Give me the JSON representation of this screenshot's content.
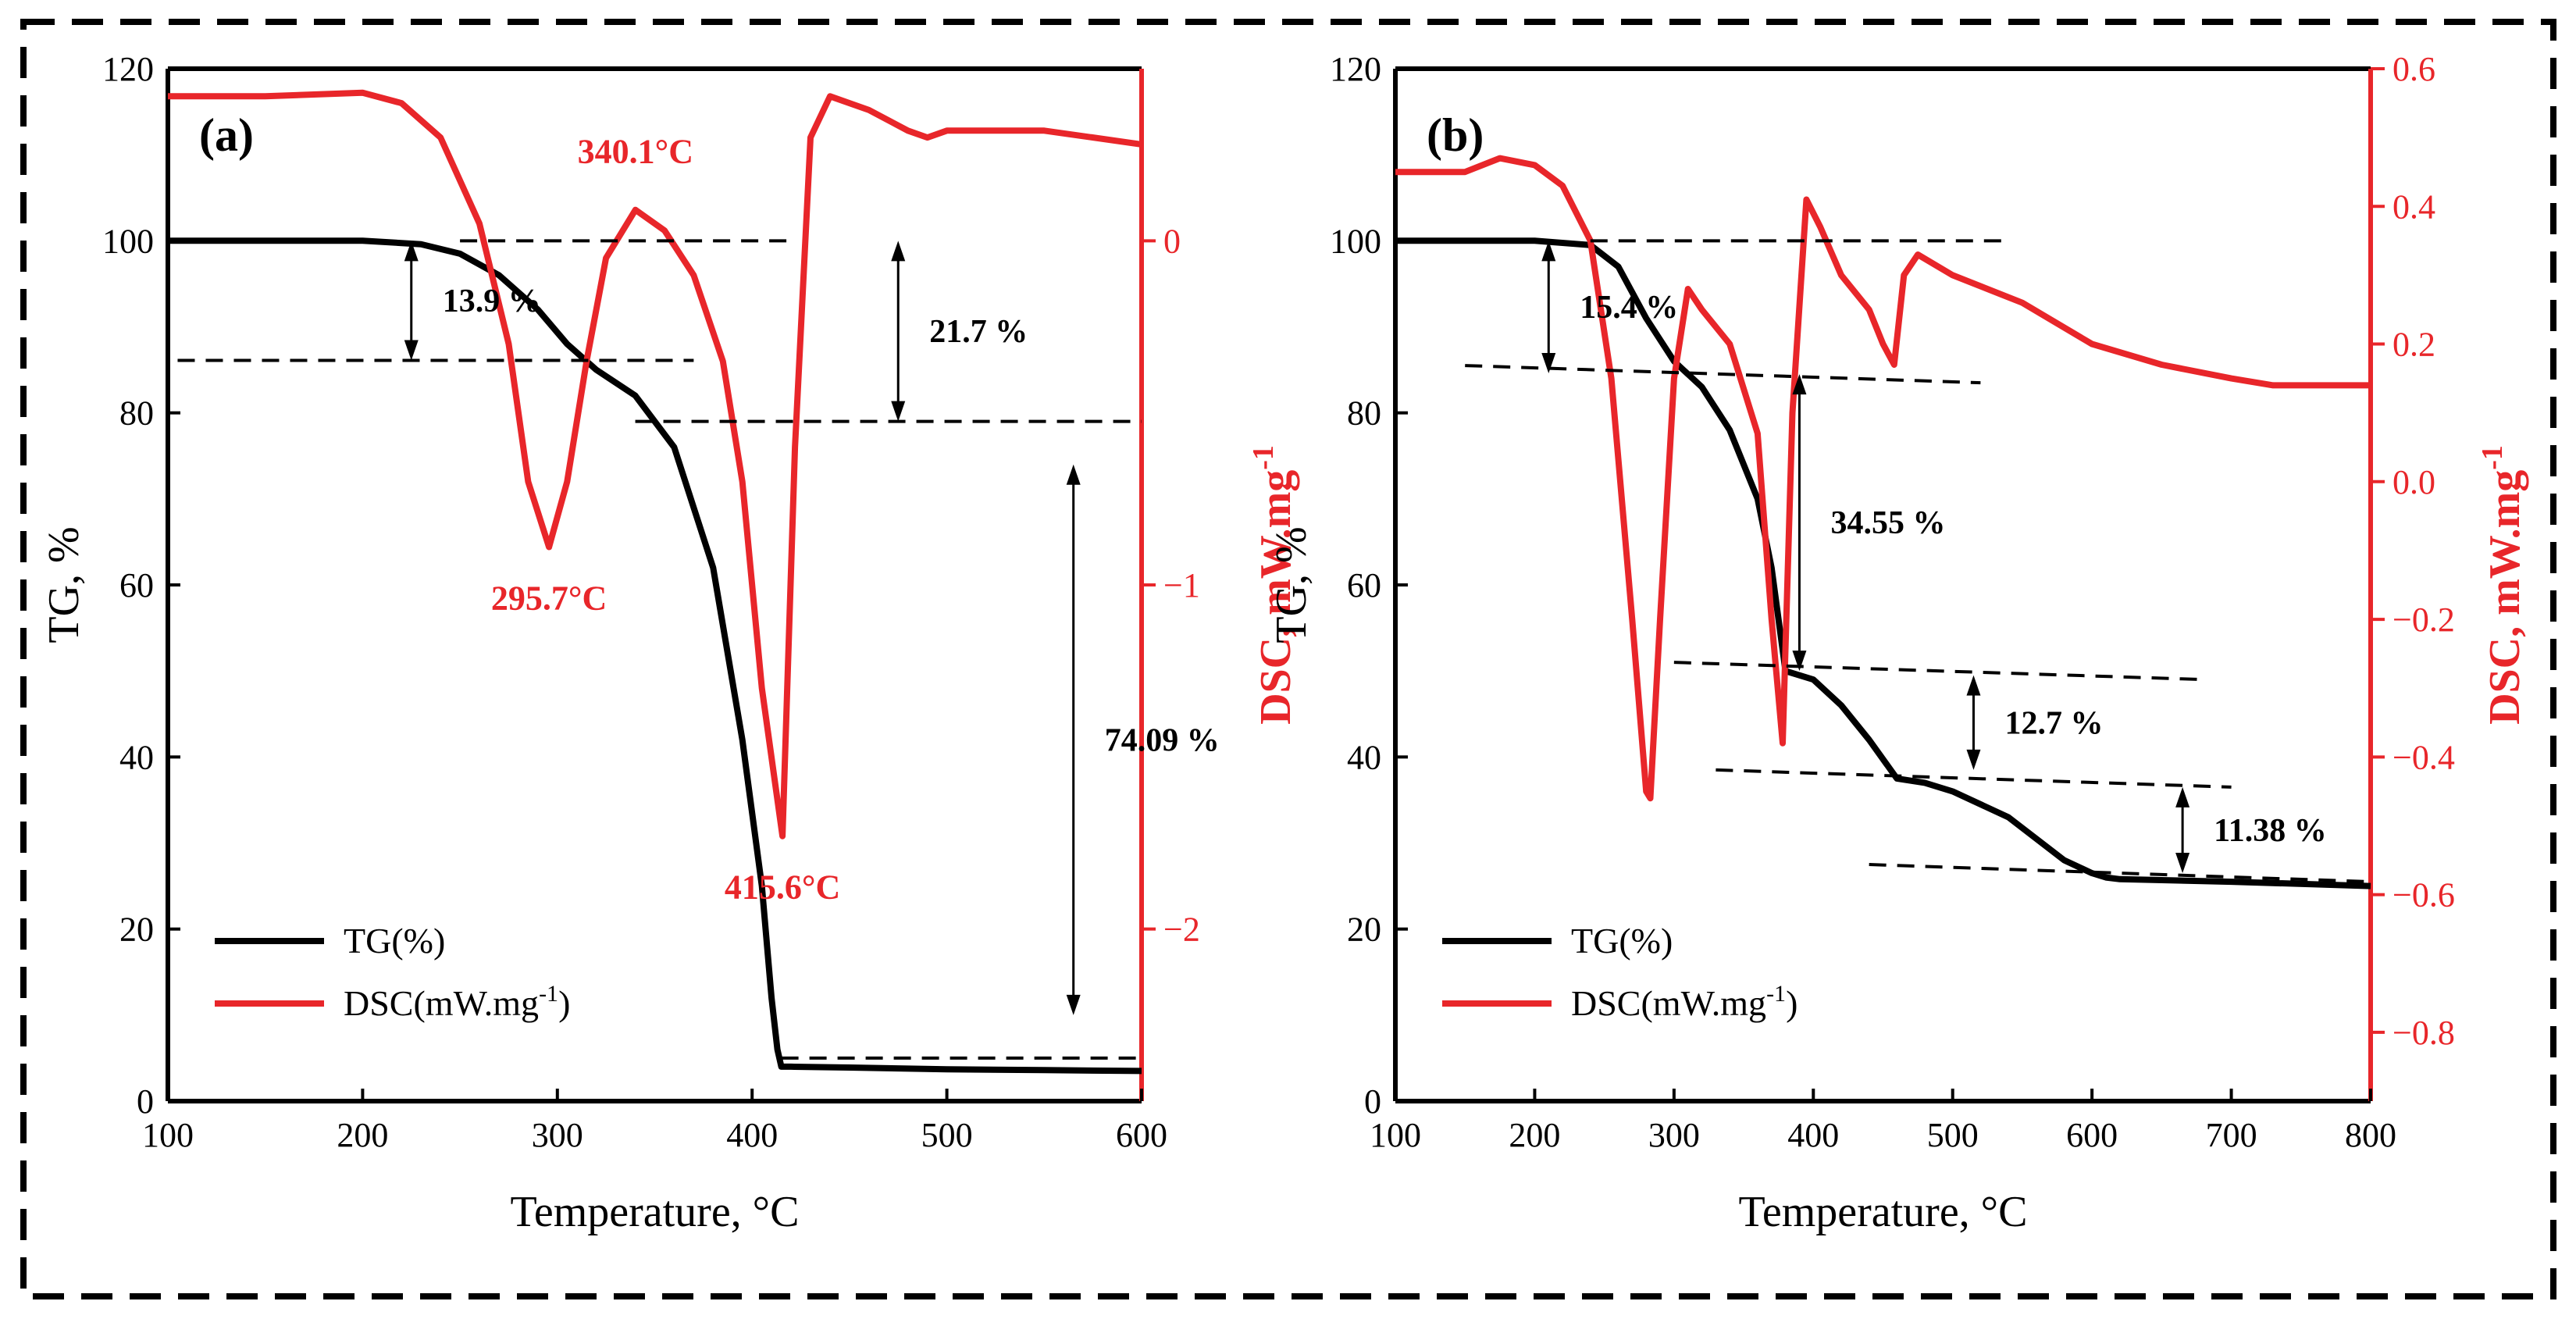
{
  "colors": {
    "tg": "#000000",
    "dsc": "#e8262a",
    "axis": "#000000",
    "guide": "#000000"
  },
  "chart_data": [
    {
      "type": "line",
      "panel_label": "(a)",
      "xlabel": "Temperature, °C",
      "ylabel": "TG, %",
      "y2label": "DSC, mW.mg",
      "y2label_sup": "-1",
      "xlim": [
        100,
        600
      ],
      "ylim": [
        0,
        120
      ],
      "y2lim": [
        -2.5,
        0.5
      ],
      "x_ticks": [
        "100",
        "200",
        "300",
        "400",
        "500",
        "600"
      ],
      "y_ticks": [
        "0",
        "20",
        "40",
        "60",
        "80",
        "100",
        "120"
      ],
      "y2_ticks": [
        "−2",
        "−1",
        "0"
      ],
      "x_tick_values": [
        100,
        200,
        300,
        400,
        500,
        600
      ],
      "y_tick_values": [
        0,
        20,
        40,
        60,
        80,
        100,
        120
      ],
      "y2_tick_values": [
        -2,
        -1,
        0
      ],
      "legend": {
        "position": "bottom-left",
        "tg": "TG(%)",
        "dsc": "DSC(mW.mg",
        "dsc_sup": "-1",
        "dsc_close": ")"
      },
      "series": [
        {
          "name": "TG(%)",
          "axis": "left",
          "x": [
            100,
            150,
            200,
            230,
            250,
            270,
            290,
            305,
            320,
            340,
            360,
            380,
            395,
            405,
            410,
            413,
            415,
            420,
            450,
            500,
            550,
            600
          ],
          "y": [
            100,
            100,
            100,
            99.6,
            98.5,
            96,
            92,
            88,
            85,
            82,
            76,
            62,
            42,
            25,
            12,
            6,
            4,
            4,
            3.9,
            3.7,
            3.6,
            3.5
          ]
        },
        {
          "name": "DSC(mW.mg-1)",
          "axis": "right",
          "x": [
            100,
            150,
            200,
            220,
            240,
            260,
            275,
            285,
            295.7,
            305,
            315,
            325,
            340.1,
            355,
            370,
            385,
            395,
            405,
            415.6,
            422,
            430,
            440,
            460,
            480,
            490,
            500,
            550,
            600
          ],
          "y": [
            0.42,
            0.42,
            0.43,
            0.4,
            0.3,
            0.05,
            -0.3,
            -0.7,
            -0.89,
            -0.7,
            -0.35,
            -0.05,
            0.09,
            0.03,
            -0.1,
            -0.35,
            -0.7,
            -1.3,
            -1.73,
            -0.6,
            0.3,
            0.42,
            0.38,
            0.32,
            0.3,
            0.32,
            0.32,
            0.28
          ]
        }
      ],
      "annotations": [
        {
          "text": "340.1°C",
          "color": "dsc",
          "x": 340.1,
          "y": 0.09,
          "axis": "right"
        },
        {
          "text": "295.7°C",
          "color": "dsc",
          "x": 295.7,
          "y": -0.89,
          "axis": "right"
        },
        {
          "text": "415.6°C",
          "color": "dsc",
          "x": 415.6,
          "y": -1.73,
          "axis": "right"
        },
        {
          "text": "13.9 %",
          "color": "tg",
          "from": 100,
          "to": 86.1,
          "x": 225
        },
        {
          "text": "21.7 %",
          "color": "tg",
          "from": 100,
          "to": 79,
          "x": 475
        },
        {
          "text": "74.09 %",
          "color": "tg",
          "from": 74,
          "to": 10,
          "x": 565
        }
      ]
    },
    {
      "type": "line",
      "panel_label": "(b)",
      "xlabel": "Temperature, °C",
      "ylabel": "TG, %",
      "y2label": "DSC, mW.mg",
      "y2label_sup": "-1",
      "xlim": [
        100,
        800
      ],
      "ylim": [
        0,
        120
      ],
      "y2lim": [
        -0.9,
        0.6
      ],
      "x_ticks": [
        "100",
        "200",
        "300",
        "400",
        "500",
        "600",
        "700",
        "800"
      ],
      "y_ticks": [
        "0",
        "20",
        "40",
        "60",
        "80",
        "100",
        "120"
      ],
      "y2_ticks": [
        "−0.8",
        "−0.6",
        "−0.4",
        "−0.2",
        "0.0",
        "0.2",
        "0.4",
        "0.6"
      ],
      "x_tick_values": [
        100,
        200,
        300,
        400,
        500,
        600,
        700,
        800
      ],
      "y_tick_values": [
        0,
        20,
        40,
        60,
        80,
        100,
        120
      ],
      "y2_tick_values": [
        -0.8,
        -0.6,
        -0.4,
        -0.2,
        0,
        0.2,
        0.4,
        0.6
      ],
      "legend": {
        "position": "bottom-left",
        "tg": "TG(%)",
        "dsc": "DSC(mW.mg",
        "dsc_sup": "-1",
        "dsc_close": ")"
      },
      "series": [
        {
          "name": "TG(%)",
          "axis": "left",
          "x": [
            100,
            200,
            240,
            260,
            280,
            300,
            320,
            340,
            360,
            370,
            380,
            400,
            420,
            440,
            460,
            480,
            500,
            540,
            580,
            600,
            610,
            620,
            700,
            800
          ],
          "y": [
            100,
            100,
            99.5,
            97,
            91,
            86,
            83,
            78,
            70,
            62,
            50,
            49,
            46,
            42,
            37.5,
            37,
            36,
            33,
            28,
            26.5,
            26,
            25.8,
            25.5,
            25
          ]
        },
        {
          "name": "DSC(mW.mg-1)",
          "axis": "right",
          "x": [
            100,
            150,
            175,
            200,
            220,
            240,
            255,
            270,
            280,
            283,
            290,
            300,
            310,
            320,
            340,
            360,
            370,
            378,
            385,
            395,
            405,
            420,
            440,
            450,
            458,
            465,
            475,
            500,
            550,
            600,
            650,
            700,
            730,
            800
          ],
          "y": [
            0.45,
            0.45,
            0.47,
            0.46,
            0.43,
            0.35,
            0.15,
            -0.2,
            -0.45,
            -0.46,
            -0.2,
            0.15,
            0.28,
            0.25,
            0.2,
            0.07,
            -0.2,
            -0.38,
            0.1,
            0.41,
            0.37,
            0.3,
            0.25,
            0.2,
            0.17,
            0.3,
            0.33,
            0.3,
            0.26,
            0.2,
            0.17,
            0.15,
            0.14,
            0.14
          ]
        }
      ],
      "annotations": [
        {
          "text": "15.4 %",
          "color": "tg",
          "from": 100,
          "to": 84.6,
          "x": 210
        },
        {
          "text": "34.55 %",
          "color": "tg",
          "from": 84.5,
          "to": 50,
          "x": 390
        },
        {
          "text": "12.7 %",
          "color": "tg",
          "from": 49.5,
          "to": 38.5,
          "x": 515
        },
        {
          "text": "11.38 %",
          "color": "tg",
          "from": 36.5,
          "to": 26.5,
          "x": 665
        }
      ]
    }
  ]
}
